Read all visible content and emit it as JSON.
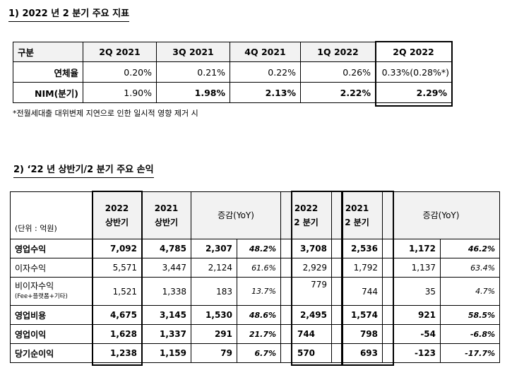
{
  "section1": {
    "title": "1) 2022 년 2 분기 주요 지표",
    "header": [
      "구분",
      "2Q 2021",
      "3Q 2021",
      "4Q 2021",
      "1Q 2022",
      "2Q 2022"
    ],
    "rows": [
      {
        "label": "연체율",
        "values": [
          "0.20%",
          "0.21%",
          "0.22%",
          "0.26%",
          "0.33%(0.28%*)"
        ]
      },
      {
        "label": "NIM(분기)",
        "values": [
          "1.90%",
          "1.98%",
          "2.13%",
          "2.22%",
          "2.29%"
        ]
      }
    ],
    "note": "*전월세대출 대위변제 지연으로 인한 일시적 영향 제거 시"
  },
  "section2": {
    "title": "2) ‘22 년 상반기/2 분기 주요 손익",
    "unit": "(단위 : 억원)",
    "header": {
      "h2022": [
        "2022",
        "상반기"
      ],
      "h2021": [
        "2021",
        "상반기"
      ],
      "yoy1": "증감(YoY)",
      "q2022": [
        "2022",
        "2 분기"
      ],
      "q2021": [
        "2021",
        "2 분기"
      ],
      "yoy2": "증감(YoY)"
    },
    "rows": [
      {
        "label": "영업수익",
        "v": [
          "7,092",
          "4,785",
          "2,307",
          "48.2%",
          "3,708",
          "2,536",
          "1,172",
          "46.2%"
        ]
      },
      {
        "label": "이자수익",
        "v": [
          "5,571",
          "3,447",
          "2,124",
          "61.6%",
          "2,929",
          "1,792",
          "1,137",
          "63.4%"
        ]
      },
      {
        "label": "비이자수익",
        "sub": "(Fee+플랫폼+기타)",
        "v": [
          "1,521",
          "1,338",
          "183",
          "13.7%",
          "779",
          "744",
          "35",
          "4.7%"
        ]
      },
      {
        "label": "영업비용",
        "v": [
          "4,675",
          "3,145",
          "1,530",
          "48.6%",
          "2,495",
          "1,574",
          "921",
          "58.5%"
        ]
      },
      {
        "label": "영업이익",
        "v": [
          "1,628",
          "1,337",
          "291",
          "21.7%",
          "744",
          "798",
          "-54",
          "-6.8%"
        ]
      },
      {
        "label": "당기순이익",
        "v": [
          "1,238",
          "1,159",
          "79",
          "6.7%",
          "570",
          "693",
          "-123",
          "-17.7%"
        ]
      }
    ]
  }
}
